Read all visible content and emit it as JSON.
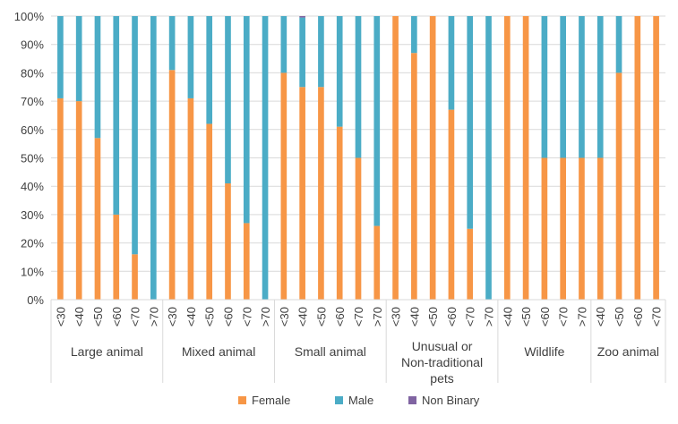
{
  "chart_data": {
    "type": "bar",
    "stacked": true,
    "percent": true,
    "ylim": [
      0,
      100
    ],
    "yticks": [
      "0%",
      "10%",
      "20%",
      "30%",
      "40%",
      "50%",
      "60%",
      "70%",
      "80%",
      "90%",
      "100%"
    ],
    "grid": true,
    "legend_position": "bottom",
    "groups": [
      {
        "name": "Large animal",
        "categories": [
          "<30",
          "<40",
          "<50",
          "<60",
          "<70",
          ">70"
        ],
        "female": [
          71,
          70,
          57,
          30,
          16,
          0
        ],
        "male": [
          29,
          30,
          43,
          70,
          84,
          100
        ],
        "non_binary": [
          0,
          0,
          0,
          0,
          0,
          0
        ]
      },
      {
        "name": "Mixed animal",
        "categories": [
          "<30",
          "<40",
          "<50",
          "<60",
          "<70",
          ">70"
        ],
        "female": [
          81,
          71,
          62,
          41,
          27,
          0
        ],
        "male": [
          19,
          29,
          38,
          59,
          73,
          100
        ],
        "non_binary": [
          0,
          0,
          0,
          0,
          0,
          0
        ]
      },
      {
        "name": "Small animal",
        "categories": [
          "<30",
          "<40",
          "<50",
          "<60",
          "<70",
          ">70"
        ],
        "female": [
          80,
          75,
          75,
          61,
          50,
          26
        ],
        "male": [
          20,
          24.5,
          25,
          39,
          50,
          74
        ],
        "non_binary": [
          0,
          0.5,
          0,
          0,
          0,
          0
        ]
      },
      {
        "name": "Unusual or Non-traditional pets",
        "categories": [
          "<30",
          "<40",
          "<50",
          "<60",
          "<70",
          ">70"
        ],
        "female": [
          100,
          87,
          100,
          67,
          25,
          0
        ],
        "male": [
          0,
          13,
          0,
          33,
          75,
          100
        ],
        "non_binary": [
          0,
          0,
          0,
          0,
          0,
          0
        ]
      },
      {
        "name": "Wildlife",
        "categories": [
          "<40",
          "<50",
          "<60",
          "<70",
          ">70"
        ],
        "female": [
          100,
          100,
          50,
          50,
          50
        ],
        "male": [
          0,
          0,
          50,
          50,
          50
        ],
        "non_binary": [
          0,
          0,
          0,
          0,
          0
        ]
      },
      {
        "name": "Zoo animal",
        "categories": [
          "<40",
          "<50",
          "<60",
          "<70"
        ],
        "female": [
          50,
          80,
          100,
          100
        ],
        "male": [
          50,
          20,
          0,
          0
        ],
        "non_binary": [
          0,
          0,
          0,
          0
        ]
      }
    ],
    "series": [
      {
        "name": "Female",
        "color": "#f79646"
      },
      {
        "name": "Male",
        "color": "#4bacc6"
      },
      {
        "name": "Non Binary",
        "color": "#8064a2"
      }
    ]
  }
}
